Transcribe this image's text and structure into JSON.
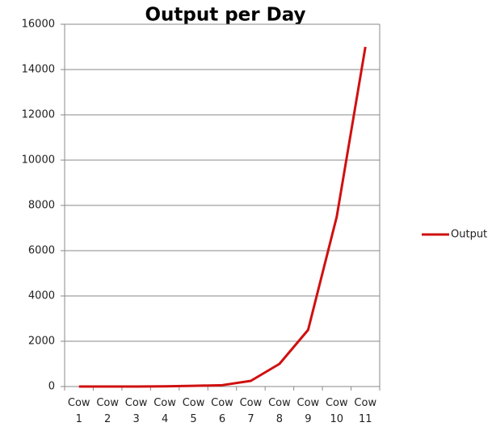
{
  "chart_data": {
    "type": "line",
    "title": "Output per Day",
    "categories": [
      "Cow 1",
      "Cow 2",
      "Cow 3",
      "Cow 4",
      "Cow 5",
      "Cow 6",
      "Cow 7",
      "Cow 8",
      "Cow 9",
      "Cow 10",
      "Cow 11"
    ],
    "series": [
      {
        "name": "Output",
        "color": "#d01010",
        "values": [
          0,
          0,
          0,
          10,
          30,
          60,
          250,
          1000,
          2500,
          7500,
          15000
        ]
      }
    ],
    "ylim": [
      0,
      16000
    ],
    "yticks": [
      0,
      2000,
      4000,
      6000,
      8000,
      10000,
      12000,
      14000,
      16000
    ],
    "grid": true,
    "legend": "right"
  }
}
